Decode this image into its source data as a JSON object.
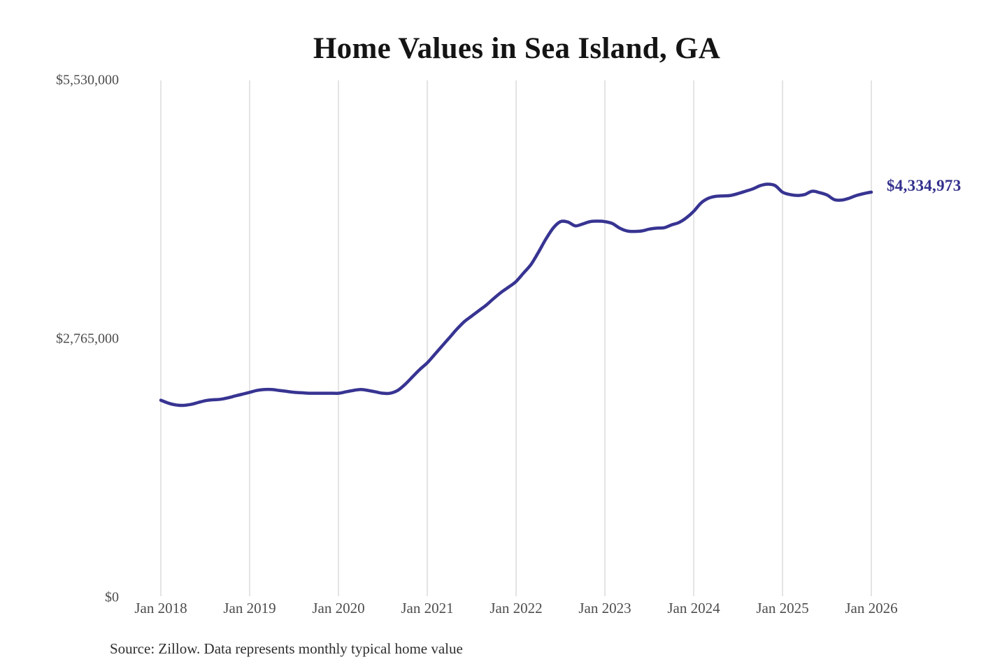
{
  "title": "Home Values in Sea Island, GA",
  "source_note": "Source: Zillow. Data represents monthly typical home value",
  "colors": {
    "line": "#373492",
    "end_label": "#33308e",
    "grid": "#c9c9c9",
    "title": "#141414",
    "axis_label": "#4d4d4d",
    "source": "#2e2e2e",
    "background": "#ffffff"
  },
  "chart_data": {
    "type": "line",
    "title": "Home Values in Sea Island, GA",
    "unit": "USD",
    "frequency": "monthly",
    "x_start_label": "Jan 2018",
    "x_tick_labels": [
      "Jan 2018",
      "Jan 2019",
      "Jan 2020",
      "Jan 2021",
      "Jan 2022",
      "Jan 2023",
      "Jan 2024",
      "Jan 2025",
      "Jan 2026"
    ],
    "y_ticks": [
      0,
      2765000,
      5530000
    ],
    "y_tick_labels": [
      "$0",
      "$2,765,000",
      "$5,530,000"
    ],
    "ylim": [
      0,
      5530000
    ],
    "grid": "vertical",
    "legend": "none",
    "end_label": "$4,334,973",
    "end_value": 4334973,
    "series": [
      {
        "name": "Typical home value",
        "values": [
          2110000,
          2080000,
          2060000,
          2055000,
          2065000,
          2085000,
          2105000,
          2115000,
          2120000,
          2135000,
          2155000,
          2175000,
          2195000,
          2215000,
          2225000,
          2225000,
          2215000,
          2205000,
          2195000,
          2190000,
          2185000,
          2185000,
          2185000,
          2185000,
          2185000,
          2200000,
          2215000,
          2225000,
          2215000,
          2200000,
          2185000,
          2185000,
          2215000,
          2280000,
          2360000,
          2440000,
          2510000,
          2600000,
          2690000,
          2780000,
          2870000,
          2950000,
          3010000,
          3070000,
          3130000,
          3200000,
          3265000,
          3320000,
          3380000,
          3470000,
          3560000,
          3690000,
          3830000,
          3950000,
          4020000,
          4015000,
          3975000,
          3995000,
          4020000,
          4025000,
          4020000,
          4000000,
          3950000,
          3920000,
          3915000,
          3920000,
          3940000,
          3950000,
          3955000,
          3985000,
          4010000,
          4060000,
          4130000,
          4220000,
          4270000,
          4290000,
          4295000,
          4300000,
          4320000,
          4345000,
          4370000,
          4405000,
          4420000,
          4405000,
          4335000,
          4310000,
          4300000,
          4310000,
          4345000,
          4330000,
          4305000,
          4255000,
          4250000,
          4270000,
          4300000,
          4320000,
          4334973
        ]
      }
    ]
  }
}
